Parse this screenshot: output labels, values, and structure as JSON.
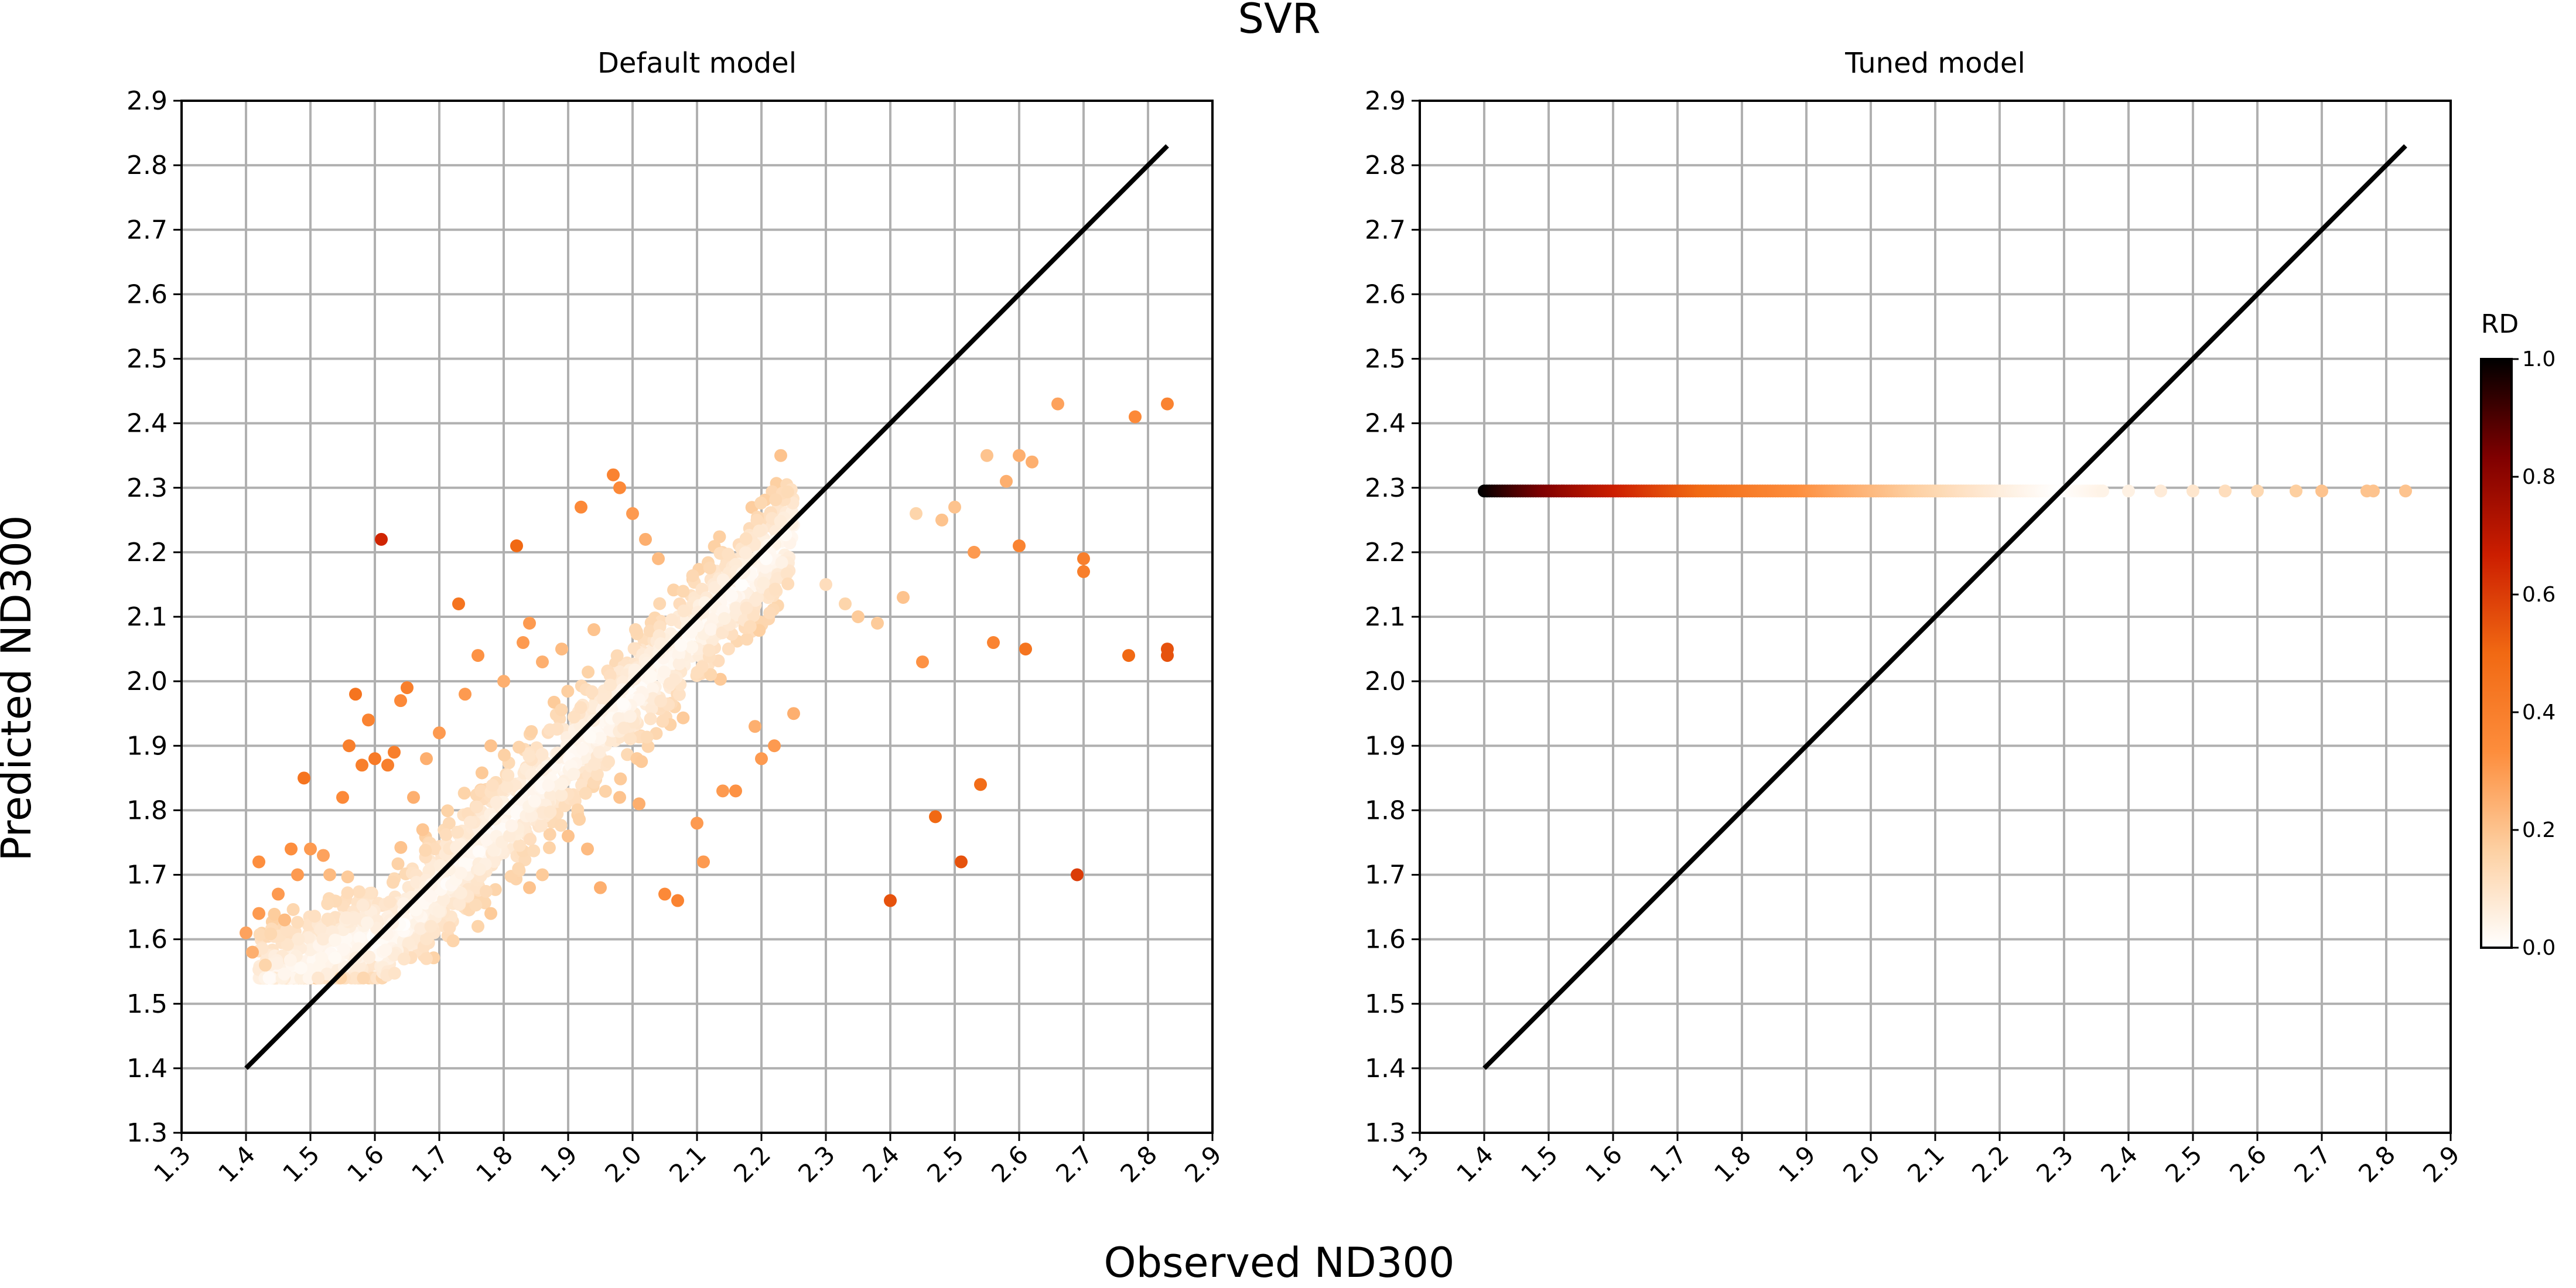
{
  "figure": {
    "title": "SVR",
    "xlabel": "Observed ND300",
    "ylabel": "Predicted ND300"
  },
  "chart_data": [
    {
      "type": "scatter",
      "title": "Default model",
      "xlim": [
        1.3,
        2.9
      ],
      "ylim": [
        1.3,
        2.9
      ],
      "xticks": [
        "1.3",
        "1.4",
        "1.5",
        "1.6",
        "1.7",
        "1.8",
        "1.9",
        "2.0",
        "2.1",
        "2.2",
        "2.3",
        "2.4",
        "2.5",
        "2.6",
        "2.7",
        "2.8",
        "2.9"
      ],
      "yticks": [
        "1.3",
        "1.4",
        "1.5",
        "1.6",
        "1.7",
        "1.8",
        "1.9",
        "2.0",
        "2.1",
        "2.2",
        "2.3",
        "2.4",
        "2.5",
        "2.6",
        "2.7",
        "2.8",
        "2.9"
      ],
      "grid": true,
      "reference_line": {
        "from": [
          1.4,
          1.4
        ],
        "to": [
          2.83,
          2.83
        ],
        "color": "#000000"
      },
      "color_variable": "RD",
      "points": [
        {
          "x": 1.4,
          "y": 1.61,
          "rd": 0.28
        },
        {
          "x": 1.41,
          "y": 1.58,
          "rd": 0.25
        },
        {
          "x": 1.42,
          "y": 1.64,
          "rd": 0.3
        },
        {
          "x": 1.42,
          "y": 1.72,
          "rd": 0.33
        },
        {
          "x": 1.43,
          "y": 1.56,
          "rd": 0.15
        },
        {
          "x": 1.45,
          "y": 1.67,
          "rd": 0.3
        },
        {
          "x": 1.46,
          "y": 1.63,
          "rd": 0.22
        },
        {
          "x": 1.47,
          "y": 1.74,
          "rd": 0.33
        },
        {
          "x": 1.48,
          "y": 1.7,
          "rd": 0.3
        },
        {
          "x": 1.49,
          "y": 1.85,
          "rd": 0.45
        },
        {
          "x": 1.5,
          "y": 1.74,
          "rd": 0.3
        },
        {
          "x": 1.52,
          "y": 1.73,
          "rd": 0.28
        },
        {
          "x": 1.53,
          "y": 1.7,
          "rd": 0.22
        },
        {
          "x": 1.55,
          "y": 1.82,
          "rd": 0.35
        },
        {
          "x": 1.56,
          "y": 1.9,
          "rd": 0.4
        },
        {
          "x": 1.57,
          "y": 1.98,
          "rd": 0.45
        },
        {
          "x": 1.58,
          "y": 1.87,
          "rd": 0.4
        },
        {
          "x": 1.59,
          "y": 1.94,
          "rd": 0.38
        },
        {
          "x": 1.6,
          "y": 1.88,
          "rd": 0.42
        },
        {
          "x": 1.61,
          "y": 2.22,
          "rd": 0.65
        },
        {
          "x": 1.62,
          "y": 1.87,
          "rd": 0.4
        },
        {
          "x": 1.63,
          "y": 1.89,
          "rd": 0.4
        },
        {
          "x": 1.64,
          "y": 1.97,
          "rd": 0.35
        },
        {
          "x": 1.65,
          "y": 1.99,
          "rd": 0.4
        },
        {
          "x": 1.66,
          "y": 1.82,
          "rd": 0.25
        },
        {
          "x": 1.68,
          "y": 1.88,
          "rd": 0.25
        },
        {
          "x": 1.7,
          "y": 1.92,
          "rd": 0.3
        },
        {
          "x": 1.73,
          "y": 2.12,
          "rd": 0.45
        },
        {
          "x": 1.74,
          "y": 1.98,
          "rd": 0.3
        },
        {
          "x": 1.76,
          "y": 2.04,
          "rd": 0.32
        },
        {
          "x": 1.78,
          "y": 1.9,
          "rd": 0.2
        },
        {
          "x": 1.8,
          "y": 2.0,
          "rd": 0.25
        },
        {
          "x": 1.82,
          "y": 2.21,
          "rd": 0.5
        },
        {
          "x": 1.83,
          "y": 2.06,
          "rd": 0.3
        },
        {
          "x": 1.84,
          "y": 2.09,
          "rd": 0.3
        },
        {
          "x": 1.86,
          "y": 2.03,
          "rd": 0.25
        },
        {
          "x": 1.89,
          "y": 2.05,
          "rd": 0.22
        },
        {
          "x": 1.92,
          "y": 2.27,
          "rd": 0.35
        },
        {
          "x": 1.94,
          "y": 2.08,
          "rd": 0.2
        },
        {
          "x": 1.97,
          "y": 2.32,
          "rd": 0.38
        },
        {
          "x": 1.98,
          "y": 2.3,
          "rd": 0.35
        },
        {
          "x": 2.0,
          "y": 2.26,
          "rd": 0.3
        },
        {
          "x": 2.02,
          "y": 2.22,
          "rd": 0.25
        },
        {
          "x": 2.04,
          "y": 2.19,
          "rd": 0.22
        },
        {
          "x": 1.78,
          "y": 1.64,
          "rd": 0.18
        },
        {
          "x": 1.76,
          "y": 1.62,
          "rd": 0.15
        },
        {
          "x": 1.68,
          "y": 1.57,
          "rd": 0.12
        },
        {
          "x": 1.84,
          "y": 1.68,
          "rd": 0.2
        },
        {
          "x": 1.86,
          "y": 1.7,
          "rd": 0.18
        },
        {
          "x": 1.9,
          "y": 1.76,
          "rd": 0.2
        },
        {
          "x": 1.93,
          "y": 1.74,
          "rd": 0.22
        },
        {
          "x": 1.95,
          "y": 1.68,
          "rd": 0.25
        },
        {
          "x": 1.98,
          "y": 1.82,
          "rd": 0.2
        },
        {
          "x": 2.01,
          "y": 1.81,
          "rd": 0.25
        },
        {
          "x": 2.05,
          "y": 1.67,
          "rd": 0.35
        },
        {
          "x": 2.07,
          "y": 1.66,
          "rd": 0.38
        },
        {
          "x": 2.1,
          "y": 1.78,
          "rd": 0.3
        },
        {
          "x": 2.11,
          "y": 1.72,
          "rd": 0.3
        },
        {
          "x": 2.14,
          "y": 1.83,
          "rd": 0.3
        },
        {
          "x": 2.16,
          "y": 1.83,
          "rd": 0.32
        },
        {
          "x": 2.19,
          "y": 1.93,
          "rd": 0.25
        },
        {
          "x": 2.2,
          "y": 1.88,
          "rd": 0.3
        },
        {
          "x": 2.22,
          "y": 1.9,
          "rd": 0.3
        },
        {
          "x": 2.25,
          "y": 1.95,
          "rd": 0.25
        },
        {
          "x": 2.23,
          "y": 2.35,
          "rd": 0.2
        },
        {
          "x": 2.3,
          "y": 2.15,
          "rd": 0.12
        },
        {
          "x": 2.33,
          "y": 2.12,
          "rd": 0.15
        },
        {
          "x": 2.35,
          "y": 2.1,
          "rd": 0.18
        },
        {
          "x": 2.38,
          "y": 2.09,
          "rd": 0.18
        },
        {
          "x": 2.4,
          "y": 1.66,
          "rd": 0.55
        },
        {
          "x": 2.42,
          "y": 2.13,
          "rd": 0.2
        },
        {
          "x": 2.44,
          "y": 2.26,
          "rd": 0.15
        },
        {
          "x": 2.45,
          "y": 2.03,
          "rd": 0.32
        },
        {
          "x": 2.47,
          "y": 1.79,
          "rd": 0.5
        },
        {
          "x": 2.48,
          "y": 2.25,
          "rd": 0.2
        },
        {
          "x": 2.5,
          "y": 2.27,
          "rd": 0.2
        },
        {
          "x": 2.51,
          "y": 1.72,
          "rd": 0.55
        },
        {
          "x": 2.53,
          "y": 2.2,
          "rd": 0.3
        },
        {
          "x": 2.54,
          "y": 1.84,
          "rd": 0.48
        },
        {
          "x": 2.56,
          "y": 2.06,
          "rd": 0.38
        },
        {
          "x": 2.58,
          "y": 2.31,
          "rd": 0.25
        },
        {
          "x": 2.6,
          "y": 2.35,
          "rd": 0.25
        },
        {
          "x": 2.61,
          "y": 2.05,
          "rd": 0.45
        },
        {
          "x": 2.62,
          "y": 2.34,
          "rd": 0.25
        },
        {
          "x": 2.6,
          "y": 2.21,
          "rd": 0.38
        },
        {
          "x": 2.66,
          "y": 2.43,
          "rd": 0.28
        },
        {
          "x": 2.7,
          "y": 2.19,
          "rd": 0.4
        },
        {
          "x": 2.7,
          "y": 2.17,
          "rd": 0.4
        },
        {
          "x": 2.77,
          "y": 2.04,
          "rd": 0.5
        },
        {
          "x": 2.69,
          "y": 1.7,
          "rd": 0.6
        },
        {
          "x": 2.78,
          "y": 2.41,
          "rd": 0.35
        },
        {
          "x": 2.83,
          "y": 2.43,
          "rd": 0.38
        },
        {
          "x": 2.83,
          "y": 2.05,
          "rd": 0.55
        },
        {
          "x": 2.83,
          "y": 2.04,
          "rd": 0.55
        },
        {
          "x": 2.55,
          "y": 2.35,
          "rd": 0.2
        }
      ]
    },
    {
      "type": "scatter",
      "title": "Tuned model",
      "xlim": [
        1.3,
        2.9
      ],
      "ylim": [
        1.3,
        2.9
      ],
      "xticks": [
        "1.3",
        "1.4",
        "1.5",
        "1.6",
        "1.7",
        "1.8",
        "1.9",
        "2.0",
        "2.1",
        "2.2",
        "2.3",
        "2.4",
        "2.5",
        "2.6",
        "2.7",
        "2.8",
        "2.9"
      ],
      "yticks": [
        "1.3",
        "1.4",
        "1.5",
        "1.6",
        "1.7",
        "1.8",
        "1.9",
        "2.0",
        "2.1",
        "2.2",
        "2.3",
        "2.4",
        "2.5",
        "2.6",
        "2.7",
        "2.8",
        "2.9"
      ],
      "grid": true,
      "reference_line": {
        "from": [
          1.4,
          1.4
        ],
        "to": [
          2.83,
          2.83
        ],
        "color": "#000000"
      },
      "color_variable": "RD",
      "prediction_constant": 2.295,
      "points": [
        {
          "x": 2.4,
          "y": 2.295,
          "rd": 0.05
        },
        {
          "x": 2.45,
          "y": 2.295,
          "rd": 0.07
        },
        {
          "x": 2.5,
          "y": 2.295,
          "rd": 0.09
        },
        {
          "x": 2.55,
          "y": 2.295,
          "rd": 0.12
        },
        {
          "x": 2.6,
          "y": 2.295,
          "rd": 0.14
        },
        {
          "x": 2.66,
          "y": 2.295,
          "rd": 0.17
        },
        {
          "x": 2.7,
          "y": 2.295,
          "rd": 0.2
        },
        {
          "x": 2.77,
          "y": 2.295,
          "rd": 0.2
        },
        {
          "x": 2.78,
          "y": 2.295,
          "rd": 0.2
        },
        {
          "x": 2.83,
          "y": 2.295,
          "rd": 0.2
        }
      ]
    }
  ],
  "colorbar": {
    "label": "RD",
    "ticks": [
      "0.0",
      "0.2",
      "0.4",
      "0.6",
      "0.8",
      "1.0"
    ],
    "colormap": [
      "#ffffff",
      "#fdd0a2",
      "#fd8d3c",
      "#f16913",
      "#cc1e00",
      "#7f0000",
      "#000000"
    ]
  }
}
